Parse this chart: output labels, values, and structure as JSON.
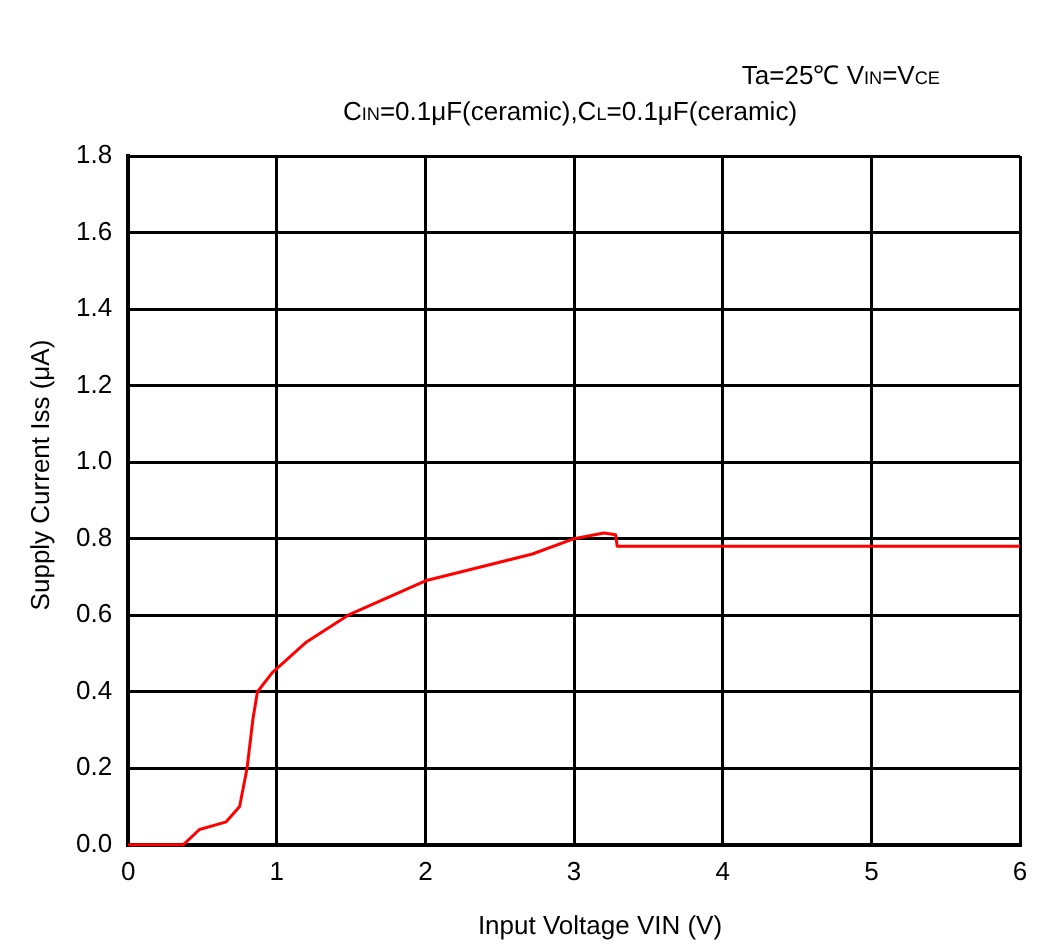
{
  "chart_data": {
    "type": "line",
    "subtitle": "Ta=25℃ V$_{IN}$=V$_{CE}$",
    "annotations": [
      "C$_{IN}$=0.1μF(ceramic),C$_{L}$=0.1μF(ceramic)"
    ],
    "xlabel": "Input Voltage  VIN (V)",
    "ylabel": "Supply Current  Iss (μA)",
    "x": [
      0,
      0.37,
      0.48,
      0.66,
      0.75,
      0.8,
      0.84,
      0.87,
      0.97,
      1.2,
      1.48,
      2.0,
      2.72,
      3.0,
      3.2,
      3.28,
      3.29,
      4,
      5,
      6
    ],
    "series": [
      {
        "color": "#ff0000",
        "values": [
          0,
          0,
          0.04,
          0.06,
          0.1,
          0.2,
          0.33,
          0.4,
          0.45,
          0.53,
          0.6,
          0.69,
          0.76,
          0.8,
          0.815,
          0.81,
          0.78,
          0.78,
          0.78,
          0.78
        ]
      }
    ],
    "xlim": [
      0,
      6
    ],
    "xticks": [
      0,
      1,
      2,
      3,
      4,
      5,
      6
    ],
    "ylim": [
      0,
      1.8
    ],
    "yticks": [
      {
        "value": 0,
        "label": "0.0"
      },
      {
        "value": 0.2,
        "label": "0.2"
      },
      {
        "value": 0.4,
        "label": "0.4"
      },
      {
        "value": 0.6,
        "label": "0.6"
      },
      {
        "value": 0.8,
        "label": "0.8"
      },
      {
        "value": 1,
        "label": "1.0"
      },
      {
        "value": 1.2,
        "label": "1.2"
      },
      {
        "value": 1.4,
        "label": "1.4"
      },
      {
        "value": 1.6,
        "label": "1.6"
      },
      {
        "value": 1.8,
        "label": "1.8"
      }
    ],
    "grid": true,
    "legend": false,
    "marker": "none",
    "line_style": "solid"
  }
}
